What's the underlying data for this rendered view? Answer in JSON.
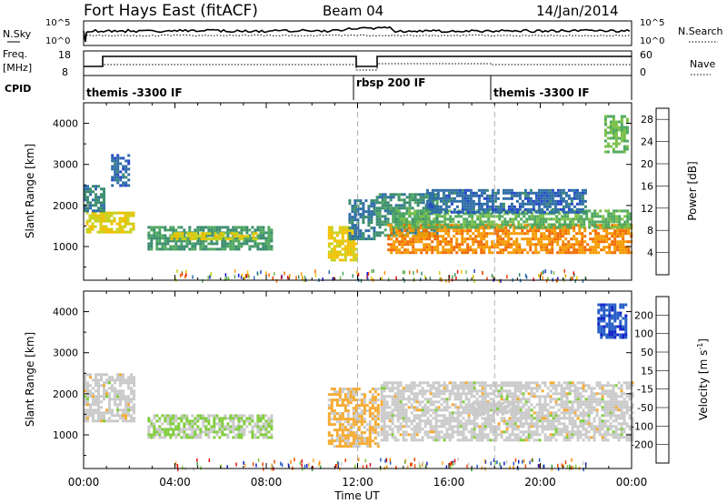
{
  "header": {
    "station": "Fort Hays East (fitACF)",
    "beam": "Beam 04",
    "date": "14/Jan/2014"
  },
  "status_panels": {
    "nsky_label": "N.Sky",
    "nsky_ticks": [
      "10^5",
      "10^0"
    ],
    "nsearch_label": "N.Search",
    "nsearch_ticks": [
      "10^5",
      "10^0"
    ],
    "freq_label": "Freq.",
    "freq_unit": "[MHz]",
    "freq_ticks": [
      "18",
      "8"
    ],
    "nave_label": "Nave",
    "nave_ticks": [
      "60",
      "0"
    ],
    "cpid_label": "CPID",
    "cpid_segments": [
      {
        "label": "themis -3300 IF",
        "start_hour": 0
      },
      {
        "label": "rbsp 200 IF",
        "start_hour": 12
      },
      {
        "label": "themis -3300 IF",
        "start_hour": 18
      }
    ]
  },
  "chart_data": [
    {
      "type": "heatmap",
      "name": "power-panel",
      "ylabel": "Slant Range [km]",
      "xlabel": "Time UT",
      "x_ticks": [
        "00:00",
        "04:00",
        "08:00",
        "12:00",
        "16:00",
        "20:00",
        "00:00"
      ],
      "x_range_hours": [
        0,
        24
      ],
      "ylim": [
        180,
        4500
      ],
      "y_ticks": [
        1000,
        2000,
        3000,
        4000
      ],
      "dashed_lines_hours": [
        12,
        18
      ],
      "colorbar": {
        "label": "Power [dB]",
        "ticks": [
          "28",
          "24",
          "20",
          "16",
          "12",
          "8",
          "4"
        ],
        "range": [
          0,
          30
        ],
        "colors": [
          "#1010e0",
          "#2448c8",
          "#2f6ea6",
          "#3a8c6e",
          "#4fa860",
          "#7cc04a",
          "#c8d21c",
          "#f0c000",
          "#f59a00",
          "#f26a00",
          "#ee3c00",
          "#e01010"
        ]
      },
      "echo_regions": [
        {
          "t0": 0.1,
          "t1": 2.2,
          "r0": 1350,
          "r1": 1850,
          "value": 17
        },
        {
          "t0": 0.0,
          "t1": 0.9,
          "r0": 1850,
          "r1": 2500,
          "value": 8
        },
        {
          "t0": 1.2,
          "t1": 2.0,
          "r0": 2500,
          "r1": 3250,
          "value": 6
        },
        {
          "t0": 2.8,
          "t1": 8.2,
          "r0": 950,
          "r1": 1500,
          "value": 10
        },
        {
          "t0": 3.8,
          "t1": 7.6,
          "r0": 1200,
          "r1": 1350,
          "value": 17
        },
        {
          "t0": 10.7,
          "t1": 11.9,
          "r0": 700,
          "r1": 1500,
          "value": 18
        },
        {
          "t0": 11.6,
          "t1": 12.7,
          "r0": 1200,
          "r1": 2150,
          "value": 7
        },
        {
          "t0": 12.8,
          "t1": 15.5,
          "r0": 1300,
          "r1": 2300,
          "value": 9
        },
        {
          "t0": 13.3,
          "t1": 24.0,
          "r0": 850,
          "r1": 1550,
          "value": 22
        },
        {
          "t0": 13.5,
          "t1": 24.0,
          "r0": 1450,
          "r1": 1900,
          "value": 12
        },
        {
          "t0": 15.0,
          "t1": 22.0,
          "r0": 1850,
          "r1": 2400,
          "value": 6
        },
        {
          "t0": 22.8,
          "t1": 23.8,
          "r0": 3300,
          "r1": 4200,
          "value": 13
        }
      ]
    },
    {
      "type": "heatmap",
      "name": "velocity-panel",
      "ylabel": "Slant Range [km]",
      "xlabel": "Time UT",
      "x_ticks": [
        "00:00",
        "04:00",
        "08:00",
        "12:00",
        "16:00",
        "20:00",
        "00:00"
      ],
      "x_range_hours": [
        0,
        24
      ],
      "ylim": [
        180,
        4500
      ],
      "y_ticks": [
        1000,
        2000,
        3000,
        4000
      ],
      "dashed_lines_hours": [
        12,
        18
      ],
      "colorbar": {
        "label": "Velocity [m s^-1]",
        "ticks": [
          "200",
          "100",
          "50",
          "15",
          "-15",
          "-50",
          "-100",
          "-200"
        ],
        "range": [
          -250,
          250
        ],
        "colors": [
          "#e01010",
          "#f04a00",
          "#f58800",
          "#f5aa30",
          "#cacaca",
          "#7fcc3a",
          "#3aa040",
          "#2a5fc8",
          "#1020c8"
        ]
      },
      "echo_regions": [
        {
          "t0": 0.0,
          "t1": 2.2,
          "r0": 1350,
          "r1": 2500,
          "value": 0
        },
        {
          "t0": 2.8,
          "t1": 8.2,
          "r0": 950,
          "r1": 1500,
          "value": 30
        },
        {
          "t0": 10.7,
          "t1": 12.9,
          "r0": 700,
          "r1": 2150,
          "value": -40
        },
        {
          "t0": 13.0,
          "t1": 24.0,
          "r0": 850,
          "r1": 2300,
          "value": 0
        },
        {
          "t0": 17.0,
          "t1": 19.0,
          "r0": 1500,
          "r1": 1800,
          "value": 0
        },
        {
          "t0": 22.5,
          "t1": 23.8,
          "r0": 3400,
          "r1": 4200,
          "value": 180
        }
      ]
    }
  ]
}
